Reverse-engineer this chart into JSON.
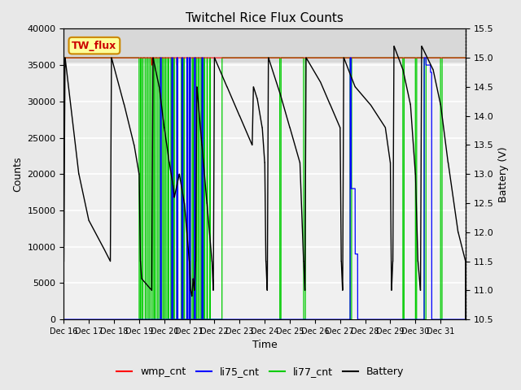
{
  "title": "Twitchel Rice Flux Counts",
  "xlabel": "Time",
  "ylabel_left": "Counts",
  "ylabel_right": "Battery (V)",
  "xlim": [
    0,
    16
  ],
  "ylim_left": [
    0,
    40000
  ],
  "ylim_right": [
    10.5,
    15.5
  ],
  "yticks_left": [
    0,
    5000,
    10000,
    15000,
    20000,
    25000,
    30000,
    35000,
    40000
  ],
  "yticks_right": [
    10.5,
    11.0,
    11.5,
    12.0,
    12.5,
    13.0,
    13.5,
    14.0,
    14.5,
    15.0,
    15.5
  ],
  "xtick_labels": [
    "Dec 16",
    "Dec 17",
    "Dec 18",
    "Dec 19",
    "Dec 20",
    "Dec 21",
    "Dec 22",
    "Dec 23",
    "Dec 24",
    "Dec 25",
    "Dec 26",
    "Dec 27",
    "Dec 28",
    "Dec 29",
    "Dec 30",
    "Dec 31"
  ],
  "bg_color": "#e8e8e8",
  "plot_bg_color": "#f0f0f0",
  "wmp_color": "#ff0000",
  "li75_color": "#0000ff",
  "li77_color": "#00cc00",
  "battery_color": "#000000",
  "legend_entries": [
    "wmp_cnt",
    "li75_cnt",
    "li77_cnt",
    "Battery"
  ],
  "tw_flux_label": "TW_flux",
  "tw_flux_box_color": "#ffff99",
  "tw_flux_text_color": "#cc0000",
  "tw_flux_edge_color": "#cc8800",
  "grid_color": "#d0d0d0",
  "band_color": "#d8d8d8",
  "band_ymin": 35500,
  "band_ymax": 40000
}
